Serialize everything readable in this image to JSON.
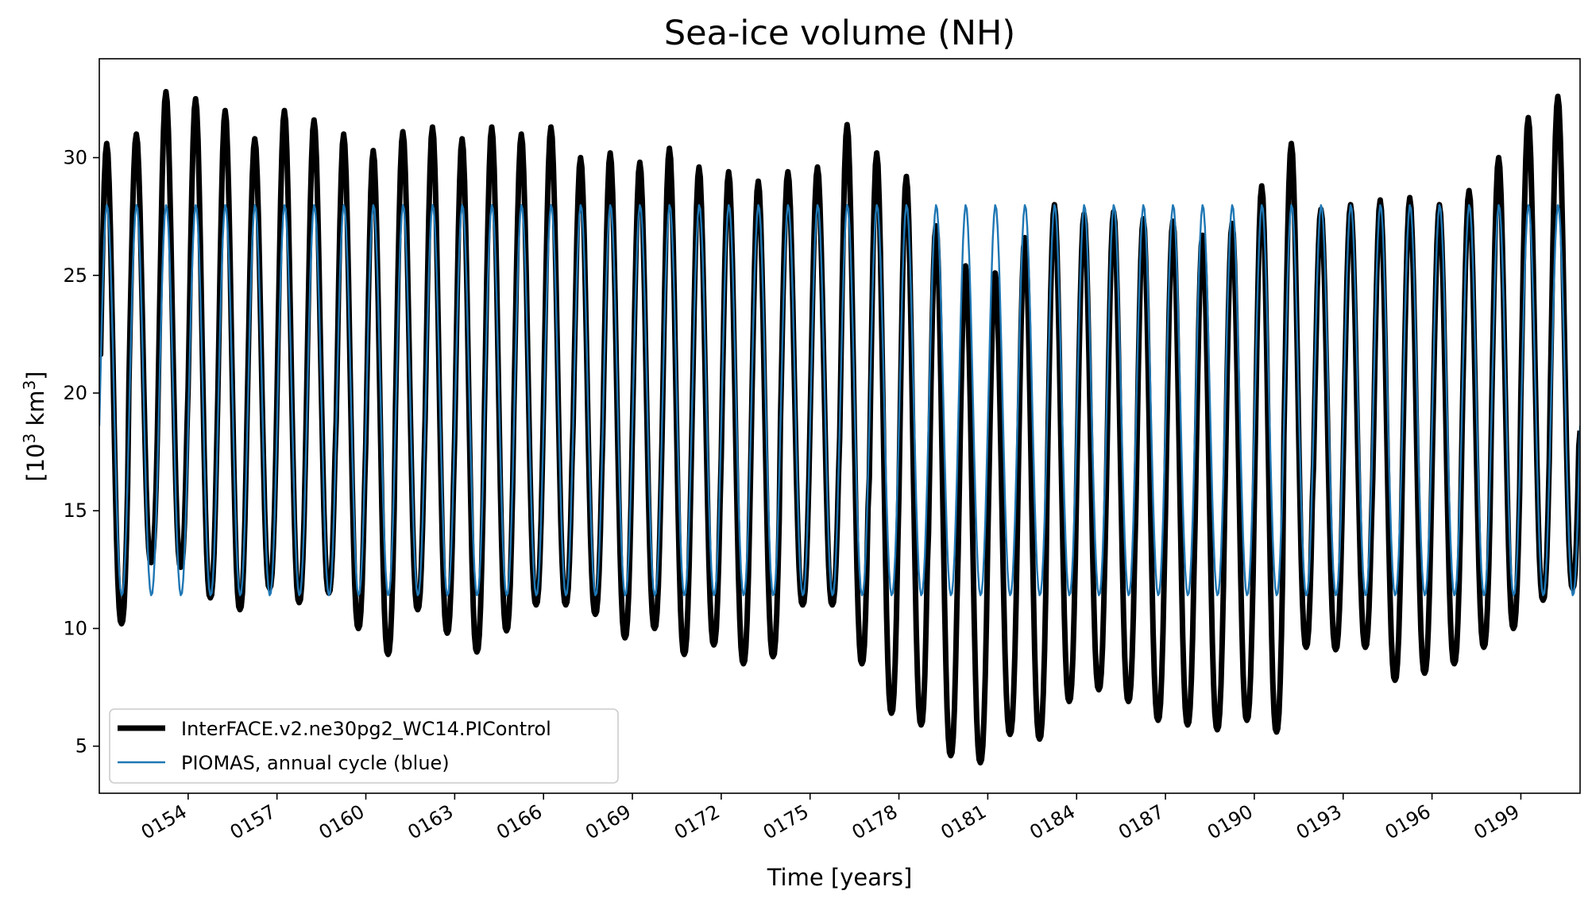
{
  "chart_data": {
    "type": "line",
    "title": "Sea-ice volume (NH)",
    "xlabel": "Time [years]",
    "ylabel_base": "[10",
    "ylabel_sup1": "3",
    "ylabel_mid": " km",
    "ylabel_sup2": "3",
    "ylabel_end": "]",
    "ylabel": "[10^3 km^3]",
    "xlim": [
      151.0,
      201.0
    ],
    "ylim": [
      3.0,
      34.2
    ],
    "yticks": [
      5,
      10,
      15,
      20,
      25,
      30
    ],
    "ytick_labels": [
      "5",
      "10",
      "15",
      "20",
      "25",
      "30"
    ],
    "xticks": [
      154,
      157,
      160,
      163,
      166,
      169,
      172,
      175,
      178,
      181,
      184,
      187,
      190,
      193,
      196,
      199
    ],
    "xtick_labels": [
      "0154",
      "0157",
      "0160",
      "0163",
      "0166",
      "0169",
      "0172",
      "0175",
      "0178",
      "0181",
      "0184",
      "0187",
      "0190",
      "0193",
      "0196",
      "0199"
    ],
    "grid": false,
    "legend_position": "lower-left",
    "series": [
      {
        "name": "InterFACE.v2.ne30pg2_WC14.PIControl",
        "color": "#000000",
        "style": "thick",
        "start_value": 22.0,
        "end_value": 18.4,
        "annual_max": [
          30.6,
          31.0,
          32.8,
          32.5,
          32.0,
          30.8,
          32.0,
          31.6,
          31.0,
          30.3,
          31.1,
          31.3,
          30.8,
          31.3,
          31.0,
          31.3,
          30.0,
          30.2,
          29.8,
          30.4,
          29.6,
          29.4,
          29.0,
          29.4,
          29.6,
          31.4,
          30.2,
          29.2,
          27.1,
          25.4,
          25.1,
          26.6,
          28.0,
          27.6,
          27.7,
          27.4,
          27.3,
          26.7,
          27.2,
          28.8,
          30.6,
          27.8,
          28.0,
          28.2,
          28.3,
          28.0,
          28.6,
          30.0,
          31.7,
          32.6
        ],
        "annual_min": [
          10.2,
          12.8,
          12.6,
          11.3,
          10.8,
          11.7,
          11.1,
          11.5,
          10.0,
          8.9,
          10.8,
          9.8,
          9.0,
          9.9,
          11.0,
          11.0,
          10.6,
          9.6,
          10.0,
          8.9,
          9.3,
          8.5,
          8.8,
          11.0,
          11.0,
          8.5,
          6.4,
          5.9,
          4.6,
          4.3,
          5.5,
          5.3,
          6.9,
          7.4,
          6.9,
          6.1,
          5.9,
          5.7,
          6.1,
          5.6,
          9.2,
          9.1,
          9.2,
          7.8,
          8.1,
          8.5,
          9.2,
          10.0,
          11.2,
          11.7
        ]
      },
      {
        "name": "PIOMAS, annual cycle (blue)",
        "color": "#1f77b4",
        "style": "thin",
        "annual_max": 28.0,
        "annual_min": 11.4
      }
    ]
  }
}
